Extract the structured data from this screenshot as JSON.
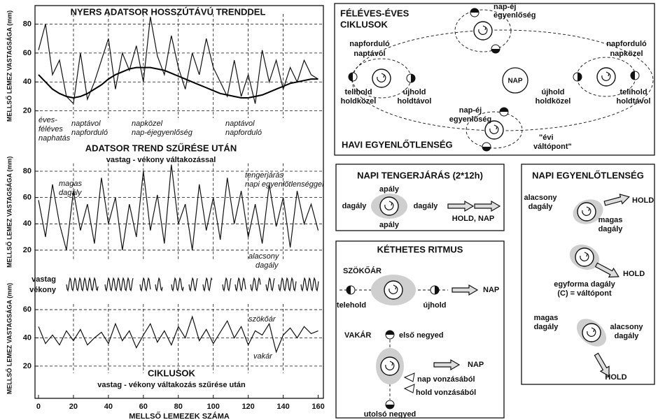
{
  "chart_data": [
    {
      "type": "line",
      "title": "NYERS ADATSOR  HOSSZÚTÁVÚ TRENDDEL",
      "ylabel": "MELLSŐ LEMEZ VASTAGSÁGA (mm)",
      "x": [
        0,
        4,
        8,
        12,
        16,
        20,
        24,
        28,
        32,
        36,
        40,
        44,
        48,
        52,
        56,
        60,
        64,
        68,
        72,
        76,
        80,
        84,
        88,
        92,
        96,
        100,
        104,
        108,
        112,
        116,
        120,
        124,
        128,
        132,
        136,
        140,
        144,
        148,
        152,
        156,
        160
      ],
      "series": [
        {
          "color": "#111111",
          "values": [
            62,
            80,
            45,
            55,
            30,
            25,
            60,
            28,
            40,
            55,
            70,
            35,
            60,
            48,
            65,
            40,
            85,
            58,
            45,
            72,
            50,
            35,
            60,
            45,
            70,
            50,
            40,
            30,
            55,
            30,
            45,
            25,
            62,
            40,
            55,
            35,
            50,
            40,
            55,
            45,
            42
          ]
        },
        {
          "color": "#000000",
          "values": [
            45,
            40,
            35,
            32,
            30,
            29,
            30,
            32,
            35,
            38,
            42,
            45,
            47,
            49,
            50,
            50,
            50,
            49,
            48,
            46,
            44,
            42,
            40,
            38,
            36,
            34,
            32,
            31,
            30,
            29,
            29,
            30,
            31,
            33,
            35,
            37,
            39,
            40,
            41,
            42,
            42
          ]
        }
      ],
      "xlim": [
        -2,
        163
      ],
      "ylim": [
        15,
        87
      ],
      "xticks": [
        20,
        40,
        60,
        80,
        100,
        120,
        140
      ],
      "yticks": [
        20,
        40,
        60,
        80
      ],
      "grid": true,
      "annotations": [
        "éves-",
        "féléves",
        "naphatás",
        "naptávol",
        "napforduló",
        "napközel",
        "nap-éjegyenlőség",
        "naptávol",
        "napforduló"
      ]
    },
    {
      "type": "line",
      "title": "ADATSOR TREND SZŰRÉSE UTÁN",
      "subtitle": "vastag - vékony váltakozással",
      "ylabel": "MELLSŐ LEMEZ VASTAGSÁGA (mm)",
      "x": [
        0,
        4,
        8,
        12,
        16,
        20,
        24,
        28,
        32,
        36,
        40,
        44,
        48,
        52,
        56,
        60,
        64,
        68,
        72,
        76,
        80,
        84,
        88,
        92,
        96,
        100,
        104,
        108,
        112,
        116,
        120,
        124,
        128,
        132,
        136,
        140,
        144,
        148,
        152,
        156,
        160
      ],
      "series": [
        {
          "color": "#111111",
          "values": [
            58,
            30,
            70,
            40,
            20,
            65,
            35,
            55,
            25,
            75,
            40,
            60,
            20,
            55,
            30,
            80,
            35,
            62,
            25,
            85,
            40,
            55,
            20,
            70,
            35,
            60,
            28,
            75,
            40,
            65,
            30,
            55,
            25,
            70,
            38,
            60,
            22,
            65,
            40,
            55,
            35
          ]
        }
      ],
      "xlim": [
        -2,
        163
      ],
      "ylim": [
        12,
        86
      ],
      "xticks": [
        20,
        40,
        60,
        80,
        100,
        120,
        140
      ],
      "yticks": [
        20,
        40,
        60,
        80
      ],
      "grid": true,
      "annotations": [
        "magas",
        "dagály",
        "tengerjárás",
        "napi egyenlőtlenséggel",
        "alacsony",
        "dagály"
      ],
      "wave_labels": [
        "vastag",
        "vékony"
      ]
    },
    {
      "type": "line",
      "title": "CIKLUSOK",
      "subtitle": "vastag - vékony váltakozás szűrése után",
      "ylabel": "MELLSŐ LEMEZ VASTAGSÁGA (mm)",
      "xlabel": "MELLSŐ LEMEZEK SZÁMA",
      "x": [
        0,
        4,
        8,
        12,
        16,
        20,
        24,
        28,
        32,
        36,
        40,
        44,
        48,
        52,
        56,
        60,
        64,
        68,
        72,
        76,
        80,
        84,
        88,
        92,
        96,
        100,
        104,
        108,
        112,
        116,
        120,
        124,
        128,
        132,
        136,
        140,
        144,
        148,
        152,
        156,
        160
      ],
      "series": [
        {
          "color": "#111111",
          "values": [
            48,
            36,
            42,
            35,
            45,
            38,
            46,
            35,
            40,
            44,
            36,
            50,
            38,
            45,
            33,
            42,
            50,
            37,
            45,
            35,
            48,
            40,
            55,
            38,
            46,
            36,
            44,
            52,
            40,
            48,
            35,
            45,
            42,
            50,
            30,
            42,
            47,
            40,
            48,
            43,
            45
          ]
        }
      ],
      "xlim": [
        -2,
        163
      ],
      "ylim": [
        15,
        64
      ],
      "xticks": [
        0,
        20,
        40,
        60,
        80,
        100,
        120,
        140,
        160
      ],
      "yticks": [
        20,
        40,
        60
      ],
      "grid": true,
      "annotations": [
        "szökőár",
        "vakár"
      ]
    }
  ],
  "diagrams": {
    "semiannual": {
      "title": [
        "FÉLÉVES-ÉVES",
        "CIKLUSOK"
      ],
      "labels": [
        "nap-éj",
        "egyenlőség",
        "napforduló",
        "naptávol",
        "napforduló",
        "napközel",
        "NAP",
        "telihold",
        "holdközel",
        "újhold",
        "holdtávol",
        "újhold",
        "holdközel",
        "telihold",
        "holdtávol",
        "nap-éj",
        "egyenlőség",
        "\"évi",
        "váltópont\"",
        "HAVI EGYENLŐTLENSÉG"
      ]
    },
    "daily_tide": {
      "title": "NAPI TENGERJÁRÁS (2*12h)",
      "labels": [
        "apály",
        "dagály",
        "dagály",
        "apály",
        "HOLD, NAP"
      ]
    },
    "biweekly": {
      "title": "KÉTHETES RITMUS",
      "labels": [
        "SZÖKŐÁR",
        "telehold",
        "újhold",
        "NAP",
        "VAKÁR",
        "első negyed",
        "NAP",
        "nap vonzásából",
        "hold vonzásából",
        "utolsó negyed"
      ]
    },
    "daily_inequality": {
      "title": "NAPI EGYENLŐTLENSÉG",
      "labels": [
        "alacsony",
        "dagály",
        "HOLD",
        "magas",
        "dagály",
        "HOLD",
        "egyforma dagály",
        "(C) = váltópont",
        "magas",
        "dagály",
        "alacsony",
        "dagály",
        "HOLD"
      ]
    }
  }
}
